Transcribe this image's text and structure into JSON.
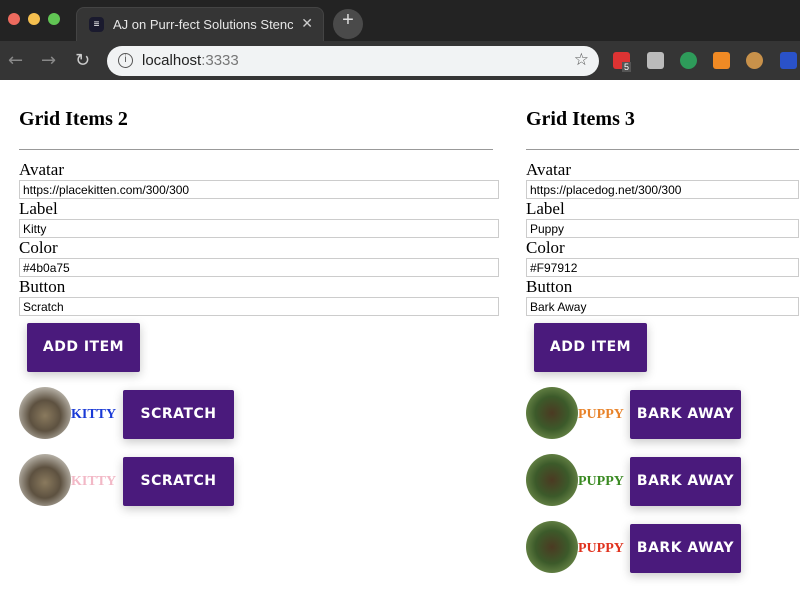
{
  "browser": {
    "tab_title": "AJ on Purr-fect Solutions Stencil",
    "url_host": "localhost",
    "url_port": ":3333",
    "ext_badge": "5"
  },
  "columns": [
    {
      "heading": "Grid Items 2",
      "fields": [
        {
          "label": "Avatar",
          "value": "https://placekitten.com/300/300"
        },
        {
          "label": "Label",
          "value": "Kitty"
        },
        {
          "label": "Color",
          "value": "#4b0a75"
        },
        {
          "label": "Button",
          "value": "Scratch"
        }
      ],
      "add_label": "ADD ITEM",
      "items": [
        {
          "label": "KITTY",
          "color": "#1a3ad6",
          "button": "SCRATCH",
          "avatar": "cat"
        },
        {
          "label": "KITTY",
          "color": "#f2b8c6",
          "button": "SCRATCH",
          "avatar": "cat"
        }
      ]
    },
    {
      "heading": "Grid Items 3",
      "fields": [
        {
          "label": "Avatar",
          "value": "https://placedog.net/300/300"
        },
        {
          "label": "Label",
          "value": "Puppy"
        },
        {
          "label": "Color",
          "value": "#F97912"
        },
        {
          "label": "Button",
          "value": "Bark Away"
        }
      ],
      "add_label": "ADD ITEM",
      "items": [
        {
          "label": "PUPPY",
          "color": "#e8832a",
          "button": "BARK AWAY",
          "avatar": "dog"
        },
        {
          "label": "PUPPY",
          "color": "#3a8a22",
          "button": "BARK AWAY",
          "avatar": "dog"
        },
        {
          "label": "PUPPY",
          "color": "#e0321e",
          "button": "BARK AWAY",
          "avatar": "dog"
        }
      ]
    }
  ]
}
